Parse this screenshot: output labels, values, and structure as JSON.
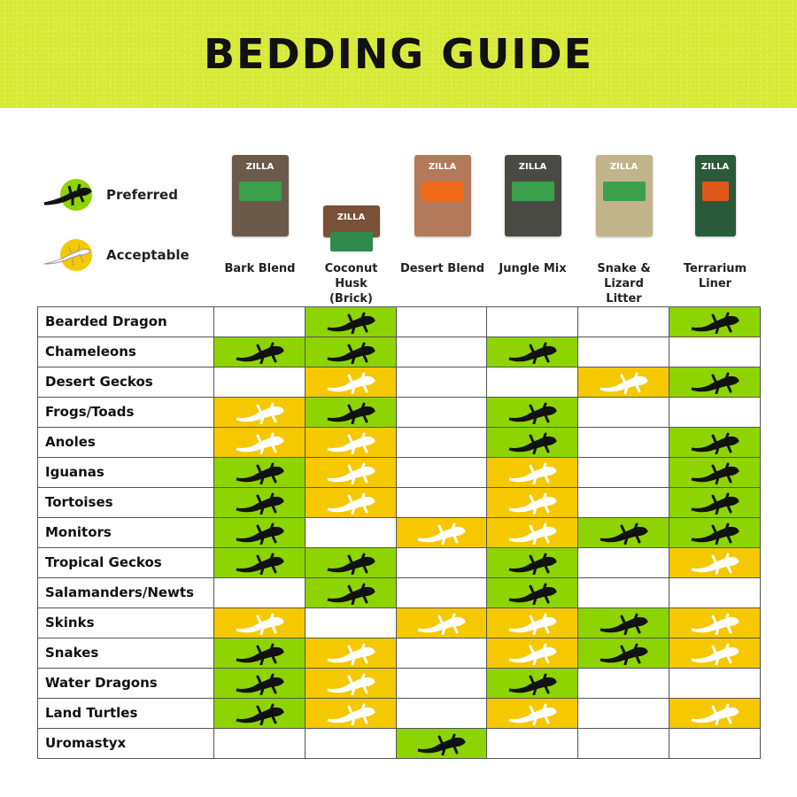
{
  "title": "BEDDING GUIDE",
  "legend": [
    {
      "label": "Preferred",
      "code": "P",
      "color": "#8dd400",
      "icon": "lizard-icon"
    },
    {
      "label": "Acceptable",
      "code": "A",
      "color": "#f5c800",
      "icon": "lizard-icon"
    }
  ],
  "products": [
    {
      "label": "Bark Blend",
      "brand": "ZILLA",
      "pack_color": "#6b5a4a",
      "band": "#3aa04a"
    },
    {
      "label": "Coconut Husk (Brick)",
      "brand": "ZILLA",
      "pack_color": "#7a5036",
      "band": "#2e8a4a"
    },
    {
      "label": "Desert Blend",
      "brand": "ZILLA",
      "pack_color": "#b27a5a",
      "band": "#f06a1a"
    },
    {
      "label": "Jungle Mix",
      "brand": "ZILLA",
      "pack_color": "#4a4a44",
      "band": "#3aa04a"
    },
    {
      "label": "Snake & Lizard Litter",
      "brand": "ZILLA",
      "pack_color": "#c2b48a",
      "band": "#3aa04a"
    },
    {
      "label": "Terrarium Liner",
      "brand": "ZILLA",
      "pack_color": "#2a5a3a",
      "band": "#e0571a"
    }
  ],
  "rows": [
    {
      "animal": "Bearded Dragon",
      "values": [
        "-",
        "P",
        "-",
        "-",
        "-",
        "P"
      ]
    },
    {
      "animal": "Chameleons",
      "values": [
        "P",
        "P",
        "-",
        "P",
        "-",
        "-"
      ]
    },
    {
      "animal": "Desert Geckos",
      "values": [
        "-",
        "A",
        "-",
        "-",
        "A",
        "P"
      ]
    },
    {
      "animal": "Frogs/Toads",
      "values": [
        "A",
        "P",
        "-",
        "P",
        "-",
        "-"
      ]
    },
    {
      "animal": "Anoles",
      "values": [
        "A",
        "A",
        "-",
        "P",
        "-",
        "P"
      ]
    },
    {
      "animal": "Iguanas",
      "values": [
        "P",
        "A",
        "-",
        "A",
        "-",
        "P"
      ]
    },
    {
      "animal": "Tortoises",
      "values": [
        "P",
        "A",
        "-",
        "A",
        "-",
        "P"
      ]
    },
    {
      "animal": "Monitors",
      "values": [
        "P",
        "-",
        "A",
        "A",
        "P",
        "P"
      ]
    },
    {
      "animal": "Tropical Geckos",
      "values": [
        "P",
        "P",
        "-",
        "P",
        "-",
        "A"
      ]
    },
    {
      "animal": "Salamanders/Newts",
      "values": [
        "-",
        "P",
        "-",
        "P",
        "-",
        "-"
      ]
    },
    {
      "animal": "Skinks",
      "values": [
        "A",
        "-",
        "A",
        "A",
        "P",
        "A"
      ]
    },
    {
      "animal": "Snakes",
      "values": [
        "P",
        "A",
        "-",
        "A",
        "P",
        "A"
      ]
    },
    {
      "animal": "Water Dragons",
      "values": [
        "P",
        "A",
        "-",
        "P",
        "-",
        "-"
      ]
    },
    {
      "animal": "Land Turtles",
      "values": [
        "P",
        "A",
        "-",
        "A",
        "-",
        "A"
      ]
    },
    {
      "animal": "Uromastyx",
      "values": [
        "-",
        "-",
        "P",
        "-",
        "-",
        "-"
      ]
    }
  ]
}
